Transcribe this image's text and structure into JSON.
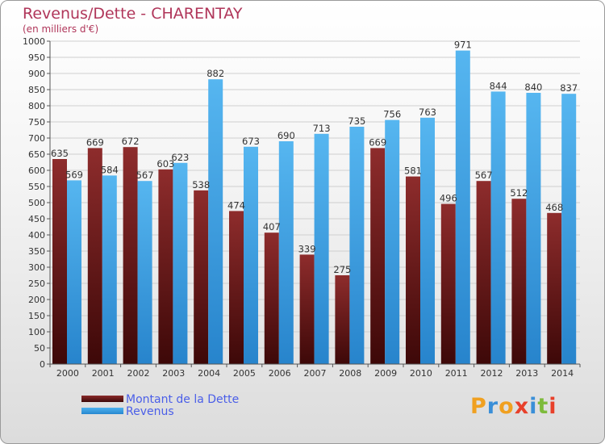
{
  "chart_data": {
    "type": "bar",
    "title": "Revenus/Dette - CHARENTAY",
    "subtitle": "(en milliers d'€)",
    "categories": [
      "2000",
      "2001",
      "2002",
      "2003",
      "2004",
      "2005",
      "2006",
      "2007",
      "2008",
      "2009",
      "2010",
      "2011",
      "2012",
      "2013",
      "2014"
    ],
    "series": [
      {
        "name": "Montant de la Dette",
        "values": [
          635,
          669,
          672,
          603,
          538,
          474,
          407,
          339,
          275,
          669,
          581,
          496,
          567,
          512,
          468
        ],
        "color": "#6e1a1a"
      },
      {
        "name": "Revenus",
        "values": [
          569,
          584,
          567,
          623,
          882,
          673,
          690,
          713,
          735,
          756,
          763,
          971,
          844,
          840,
          837
        ],
        "color": "#3d9ee6"
      }
    ],
    "ylim": [
      0,
      1000
    ],
    "yticks": [
      0,
      50,
      100,
      150,
      200,
      250,
      300,
      350,
      400,
      450,
      500,
      550,
      600,
      650,
      700,
      750,
      800,
      850,
      900,
      950,
      1000
    ],
    "grid": true,
    "legend_position": "bottom-left"
  },
  "logo": {
    "letters": [
      "P",
      "r",
      "o",
      "x",
      "i",
      "t",
      "i"
    ],
    "colors": [
      "#f0a020",
      "#3a8fd8",
      "#f0a020",
      "#e8402a",
      "#3a8fd8",
      "#7dbb3c",
      "#e8402a"
    ]
  }
}
